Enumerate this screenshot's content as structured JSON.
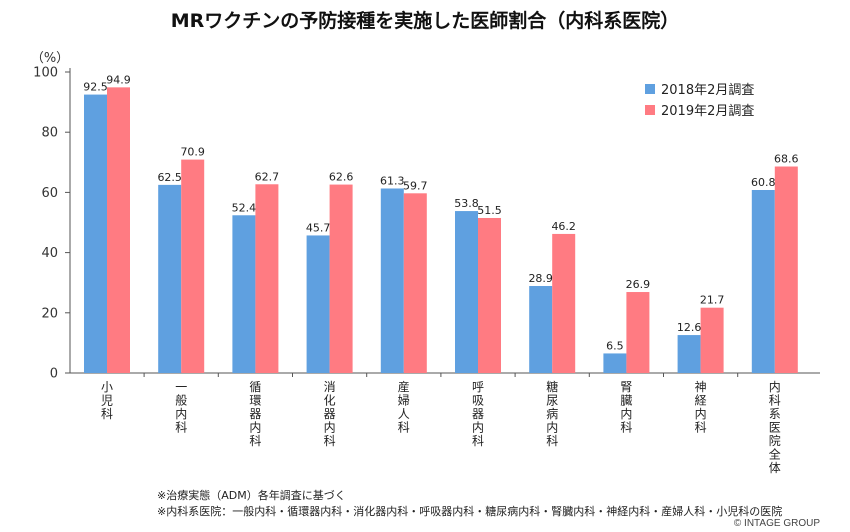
{
  "chart_data": {
    "type": "bar",
    "title": "MRワクチンの予防接種を実施した医師割合（内科系医院）",
    "ylabel": "（%）",
    "ylim": [
      0,
      100
    ],
    "yticks": [
      0,
      20,
      40,
      60,
      80,
      100
    ],
    "grid": false,
    "legend_position": "top-right",
    "categories": [
      "小児科",
      "一般内科",
      "循環器内科",
      "消化器内科",
      "産婦人科",
      "呼吸器内科",
      "糖尿病内科",
      "腎臓内科",
      "神経内科",
      "内科系医院全体"
    ],
    "series": [
      {
        "name": "2018年2月調査",
        "color": "#5fa0e0",
        "values": [
          92.5,
          62.5,
          52.4,
          45.7,
          61.3,
          53.8,
          28.9,
          6.5,
          12.6,
          60.8
        ]
      },
      {
        "name": "2019年2月調査",
        "color": "#ff7b82",
        "values": [
          94.9,
          70.9,
          62.7,
          62.6,
          59.7,
          51.5,
          46.2,
          26.9,
          21.7,
          68.6
        ]
      }
    ]
  },
  "notes": [
    "※治療実態（ADM）各年調査に基づく",
    "※内科系医院：一般内科・循環器内科・消化器内科・呼吸器内科・糖尿病内科・腎臓内科・神経内科・産婦人科・小児科の医院"
  ],
  "copyright": "© INTAGE GROUP"
}
